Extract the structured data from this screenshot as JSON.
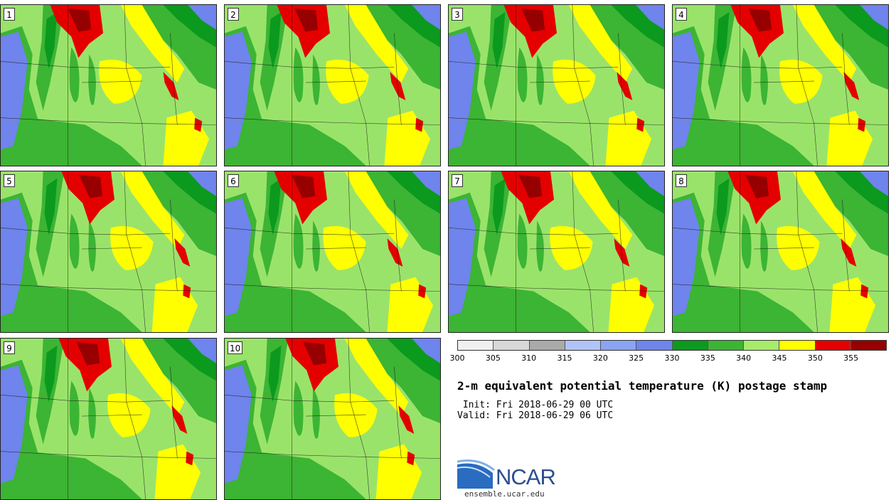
{
  "panels": [
    {
      "label": "1"
    },
    {
      "label": "2"
    },
    {
      "label": "3"
    },
    {
      "label": "4"
    },
    {
      "label": "5"
    },
    {
      "label": "6"
    },
    {
      "label": "7"
    },
    {
      "label": "8"
    },
    {
      "label": "9"
    },
    {
      "label": "10"
    }
  ],
  "colorbar": {
    "colors": [
      "#f0f0f0",
      "#d8d8d8",
      "#aaaaaa",
      "#b0c4f8",
      "#8aa4f2",
      "#6f84ec",
      "#0b9a1e",
      "#3cb434",
      "#a6ec6a",
      "#ffff00",
      "#e40000",
      "#960000"
    ],
    "ticks": [
      "300",
      "305",
      "310",
      "315",
      "320",
      "325",
      "330",
      "335",
      "340",
      "345",
      "350",
      "355"
    ]
  },
  "title": "2-m equivalent potential temperature (K) postage stamp",
  "init_line": " Init: Fri 2018-06-29 00 UTC",
  "valid_line": "Valid: Fri 2018-06-29 06 UTC",
  "logo": {
    "name": "NCAR",
    "url": "ensemble.ucar.edu"
  }
}
